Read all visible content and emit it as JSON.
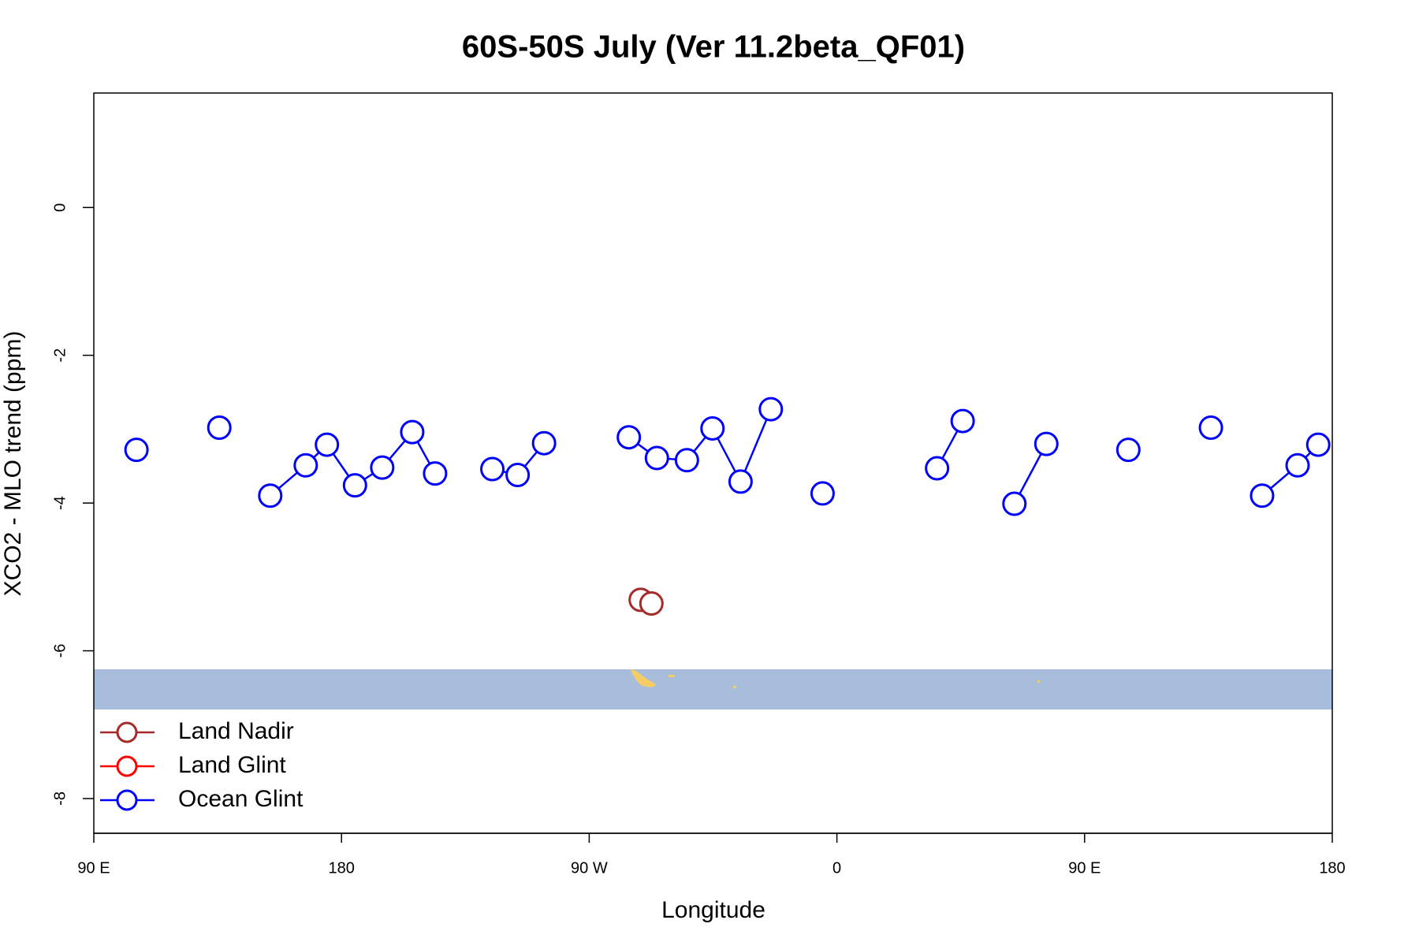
{
  "chart_data": {
    "type": "line",
    "title": "60S-50S July (Ver 11.2beta_QF01)",
    "xlabel": "Longitude",
    "ylabel": "XCO2 - MLO trend (ppm)",
    "xlim": [
      90,
      540
    ],
    "ylim": [
      -8.47,
      1.55
    ],
    "xticks": [
      {
        "value": 90,
        "label": "90 E"
      },
      180,
      {
        "value": 270,
        "label": "90 W"
      },
      {
        "value": 360,
        "label": "0"
      },
      {
        "value": 450,
        "label": "90 E"
      },
      {
        "value": 540,
        "label": "180"
      }
    ],
    "yticks": [
      0,
      -2,
      -4,
      -6,
      -8
    ],
    "legend": "bottom-left",
    "series": [
      {
        "name": "Land Nadir",
        "color": "#a52a2a",
        "x": [
          288.7,
          292.6
        ],
        "values": [
          -5.31,
          -5.36
        ]
      },
      {
        "name": "Land Glint",
        "color": "#ff0000",
        "x": [],
        "values": []
      },
      {
        "name": "Ocean Glint",
        "color": "#0000ff",
        "x": [
          105.5,
          null,
          135.6,
          null,
          154.1,
          167.0,
          174.7,
          184.9,
          194.8,
          205.7,
          214.0,
          null,
          234.8,
          244.0,
          253.6,
          null,
          284.4,
          294.6,
          305.5,
          314.8,
          325.0,
          336.0,
          null,
          354.8,
          null,
          396.4,
          405.7,
          null,
          424.5,
          436.1,
          null,
          465.9,
          null,
          495.9,
          null,
          514.5,
          527.4,
          534.9
        ],
        "values": [
          -3.28,
          null,
          -2.98,
          null,
          -3.9,
          -3.49,
          -3.21,
          -3.76,
          -3.52,
          -3.04,
          -3.6,
          null,
          -3.54,
          -3.62,
          -3.19,
          null,
          -3.11,
          -3.39,
          -3.42,
          -2.99,
          -3.71,
          -2.73,
          null,
          -3.87,
          null,
          -3.53,
          -2.89,
          null,
          -4.01,
          -3.2,
          null,
          -3.28,
          null,
          -2.98,
          null,
          -3.9,
          -3.49,
          -3.21
        ]
      }
    ]
  }
}
